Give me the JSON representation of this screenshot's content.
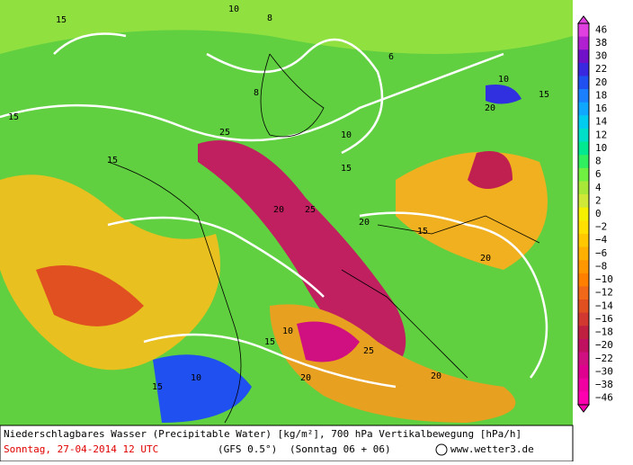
{
  "colorbar": {
    "labels": [
      "46",
      "38",
      "30",
      "22",
      "20",
      "18",
      "16",
      "14",
      "12",
      "10",
      "8",
      "6",
      "4",
      "2",
      "0",
      "−2",
      "−4",
      "−6",
      "−8",
      "−10",
      "−12",
      "−14",
      "−16",
      "−18",
      "−20",
      "−22",
      "−30",
      "−38",
      "−46"
    ],
    "colors": [
      "#e040e0",
      "#b020d0",
      "#7010c8",
      "#3a28e0",
      "#2050f0",
      "#1a80ff",
      "#10a8ff",
      "#00ccf0",
      "#00e0c8",
      "#00e890",
      "#30f060",
      "#70f040",
      "#a8e838",
      "#d0e838",
      "#f4f000",
      "#ffe000",
      "#ffc800",
      "#ffb000",
      "#ff9800",
      "#ff8000",
      "#f06818",
      "#e05020",
      "#d03830",
      "#c02040",
      "#c01060",
      "#d01080",
      "#e00090",
      "#f000a0",
      "#ff00b0"
    ]
  },
  "contours": [
    "15",
    "10",
    "8",
    "6",
    "10",
    "15",
    "8",
    "10",
    "15",
    "20",
    "25",
    "15",
    "20",
    "25",
    "20",
    "15",
    "20",
    "10",
    "15",
    "20",
    "25",
    "20",
    "15",
    "10",
    "15"
  ],
  "footer": {
    "title": "Niederschlagbares Wasser (Precipitable Water) [kg/m²], 700 hPa Vertikalbewegung [hPa/h]",
    "date": "Sonntag, 27-04-2014  12 UTC",
    "model": "(GFS 0.5°)",
    "run": "(Sonntag 06 + 06)",
    "site": "www.wetter3.de"
  }
}
